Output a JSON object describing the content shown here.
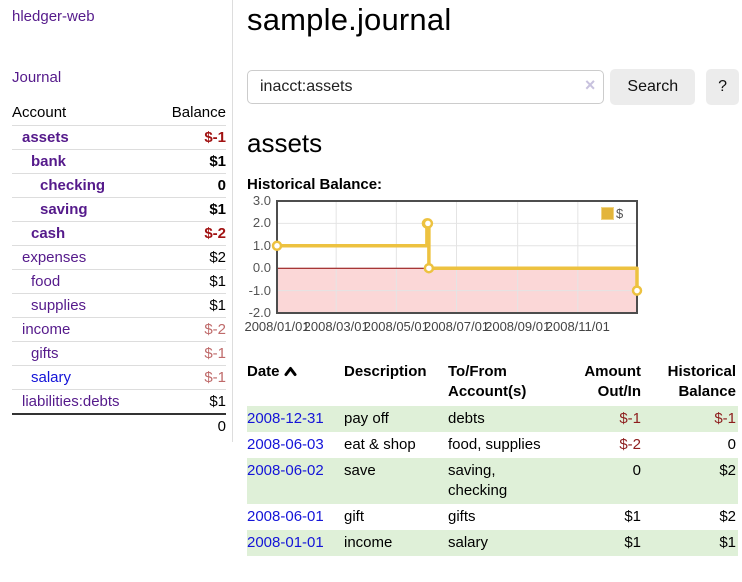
{
  "app": {
    "brand": "hledger-web",
    "nav": {
      "journal": "Journal"
    }
  },
  "sidebar": {
    "header": {
      "account": "Account",
      "balance": "Balance"
    },
    "rows": [
      {
        "label": "assets",
        "indent": 0,
        "bold": true,
        "blue": false,
        "balance": "$-1",
        "balance_style": "neg-bold"
      },
      {
        "label": "bank",
        "indent": 1,
        "bold": true,
        "blue": false,
        "balance": "$1",
        "balance_style": "bold"
      },
      {
        "label": "checking",
        "indent": 2,
        "bold": true,
        "blue": false,
        "balance": "0",
        "balance_style": "bold"
      },
      {
        "label": "saving",
        "indent": 2,
        "bold": true,
        "blue": false,
        "balance": "$1",
        "balance_style": "bold"
      },
      {
        "label": "cash",
        "indent": 1,
        "bold": true,
        "blue": false,
        "balance": "$-2",
        "balance_style": "neg-bold"
      },
      {
        "label": "expenses",
        "indent": 0,
        "bold": false,
        "blue": false,
        "balance": "$2",
        "balance_style": "plain"
      },
      {
        "label": "food",
        "indent": 1,
        "bold": false,
        "blue": false,
        "balance": "$1",
        "balance_style": "plain"
      },
      {
        "label": "supplies",
        "indent": 1,
        "bold": false,
        "blue": false,
        "balance": "$1",
        "balance_style": "plain"
      },
      {
        "label": "income",
        "indent": 0,
        "bold": false,
        "blue": false,
        "balance": "$-2",
        "balance_style": "neg-soft"
      },
      {
        "label": "gifts",
        "indent": 1,
        "bold": false,
        "blue": false,
        "balance": "$-1",
        "balance_style": "neg-soft"
      },
      {
        "label": "salary",
        "indent": 1,
        "bold": false,
        "blue": true,
        "balance": "$-1",
        "balance_style": "neg-soft"
      },
      {
        "label": "liabilities:debts",
        "indent": 0,
        "bold": false,
        "blue": false,
        "balance": "$1",
        "balance_style": "plain"
      }
    ],
    "total": "0"
  },
  "main": {
    "title": "sample.journal",
    "search": {
      "value": "inacct:assets",
      "clear_icon": "×",
      "button": "Search",
      "help": "?"
    },
    "account_heading": "assets",
    "chart_heading": "Historical Balance:",
    "chart_data": {
      "type": "line",
      "step": true,
      "title": "Historical Balance:",
      "legend_label": "$",
      "legend_position": "top-right",
      "x": [
        "2008-01-01",
        "2008-06-01",
        "2008-06-02",
        "2008-06-03",
        "2008-12-31"
      ],
      "values": [
        1,
        2,
        2,
        0,
        -1
      ],
      "xlim": [
        "2008-01-01",
        "2008-12-31"
      ],
      "ylim": [
        -2,
        3
      ],
      "yticks": [
        "3.0",
        "2.0",
        "1.0",
        "0.0",
        "-1.0",
        "-2.0"
      ],
      "xtick_labels": [
        "2008/01/01",
        "2008/03/01",
        "2008/05/01",
        "2008/07/01",
        "2008/09/01",
        "2008/11/01"
      ],
      "grid": true,
      "colors": {
        "line": "#edc240",
        "marker_fill": "#ffffff",
        "negative_region": "#fbd7d7",
        "zero_line": "#8b0000",
        "border": "#4d4d4d",
        "gridline": "#e4e4e4"
      }
    },
    "register": {
      "headers": {
        "date": "Date",
        "description": "Description",
        "account": "To/From Account(s)",
        "amount": "Amount Out/In",
        "balance": "Historical Balance"
      },
      "rows": [
        {
          "date": "2008-12-31",
          "description": "pay off",
          "accounts": "debts",
          "amount": "$-1",
          "amount_negative": true,
          "balance": "$-1",
          "balance_negative": true,
          "shaded": true
        },
        {
          "date": "2008-06-03",
          "description": "eat & shop",
          "accounts": "food, supplies",
          "amount": "$-2",
          "amount_negative": true,
          "balance": "0",
          "balance_negative": false,
          "shaded": false
        },
        {
          "date": "2008-06-02",
          "description": "save",
          "accounts": "saving, checking",
          "amount": "0",
          "amount_negative": false,
          "balance": "$2",
          "balance_negative": false,
          "shaded": true
        },
        {
          "date": "2008-06-01",
          "description": "gift",
          "accounts": "gifts",
          "amount": "$1",
          "amount_negative": false,
          "balance": "$2",
          "balance_negative": false,
          "shaded": false
        },
        {
          "date": "2008-01-01",
          "description": "income",
          "accounts": "salary",
          "amount": "$1",
          "amount_negative": false,
          "balance": "$1",
          "balance_negative": false,
          "shaded": true
        }
      ]
    }
  },
  "colors": {
    "accent_purple": "#551a8b",
    "link_blue": "#1414d8",
    "negative_bold": "#a11212",
    "negative_table": "#8d1d1d",
    "negative_soft": "#bf6a6a",
    "row_green": "#dff0d8"
  }
}
